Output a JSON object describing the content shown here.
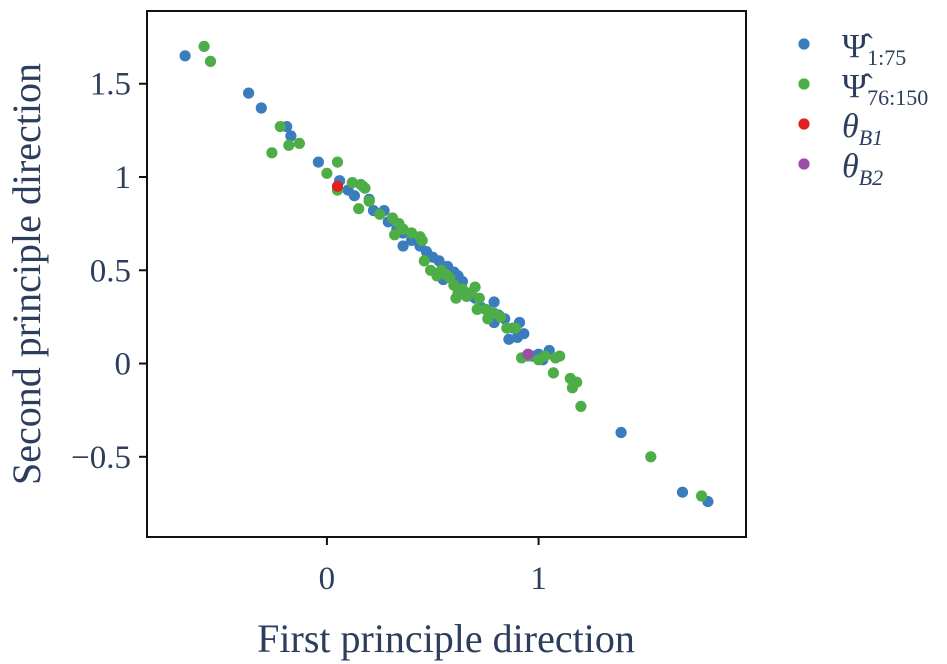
{
  "chart_data": {
    "type": "scatter",
    "xlabel": "First principle direction",
    "ylabel": "Second principle direction",
    "xlim": [
      -0.85,
      1.98
    ],
    "ylim": [
      -0.93,
      1.89
    ],
    "xticks": [
      {
        "value": 0,
        "label": "0"
      },
      {
        "value": 1,
        "label": "1"
      }
    ],
    "yticks": [
      {
        "value": 1.5,
        "label": "1.5"
      },
      {
        "value": 1,
        "label": "1"
      },
      {
        "value": 0.5,
        "label": "0.5"
      },
      {
        "value": 0,
        "label": "0"
      },
      {
        "value": -0.5,
        "label": "−0.5"
      }
    ],
    "grid": false,
    "legend_position": "outside-top-right",
    "series": [
      {
        "name": "Ψ̂ 1:75",
        "name_main": "Ψ̂",
        "name_sub": "1:75",
        "color": "#3a7cbd",
        "points": [
          [
            -0.67,
            1.65
          ],
          [
            -0.37,
            1.45
          ],
          [
            -0.31,
            1.37
          ],
          [
            -0.19,
            1.27
          ],
          [
            -0.17,
            1.22
          ],
          [
            -0.04,
            1.08
          ],
          [
            0.06,
            0.98
          ],
          [
            0.1,
            0.93
          ],
          [
            0.13,
            0.9
          ],
          [
            0.17,
            0.95
          ],
          [
            0.2,
            0.88
          ],
          [
            0.22,
            0.82
          ],
          [
            0.27,
            0.82
          ],
          [
            0.29,
            0.76
          ],
          [
            0.33,
            0.72
          ],
          [
            0.36,
            0.7
          ],
          [
            0.36,
            0.63
          ],
          [
            0.4,
            0.66
          ],
          [
            0.44,
            0.63
          ],
          [
            0.47,
            0.6
          ],
          [
            0.5,
            0.57
          ],
          [
            0.53,
            0.55
          ],
          [
            0.55,
            0.45
          ],
          [
            0.57,
            0.52
          ],
          [
            0.6,
            0.49
          ],
          [
            0.62,
            0.47
          ],
          [
            0.64,
            0.44
          ],
          [
            0.67,
            0.37
          ],
          [
            0.7,
            0.35
          ],
          [
            0.73,
            0.3
          ],
          [
            0.76,
            0.28
          ],
          [
            0.79,
            0.22
          ],
          [
            0.79,
            0.33
          ],
          [
            0.81,
            0.26
          ],
          [
            0.84,
            0.24
          ],
          [
            0.86,
            0.13
          ],
          [
            0.88,
            0.19
          ],
          [
            0.9,
            0.14
          ],
          [
            0.91,
            0.22
          ],
          [
            0.93,
            0.16
          ],
          [
            0.97,
            0.04
          ],
          [
            1.0,
            0.05
          ],
          [
            1.02,
            0.02
          ],
          [
            1.05,
            0.07
          ],
          [
            1.39,
            -0.37
          ],
          [
            1.68,
            -0.69
          ],
          [
            1.8,
            -0.74
          ]
        ]
      },
      {
        "name": "Ψ̂ 76:150",
        "name_main": "Ψ̂",
        "name_sub": "76:150",
        "color": "#4dae48",
        "points": [
          [
            -0.58,
            1.7
          ],
          [
            -0.55,
            1.62
          ],
          [
            -0.22,
            1.27
          ],
          [
            -0.26,
            1.13
          ],
          [
            -0.18,
            1.17
          ],
          [
            -0.13,
            1.18
          ],
          [
            0.05,
            1.08
          ],
          [
            0.0,
            1.02
          ],
          [
            0.05,
            0.93
          ],
          [
            0.12,
            0.97
          ],
          [
            0.16,
            0.96
          ],
          [
            0.18,
            0.94
          ],
          [
            0.15,
            0.83
          ],
          [
            0.2,
            0.87
          ],
          [
            0.25,
            0.8
          ],
          [
            0.31,
            0.78
          ],
          [
            0.32,
            0.69
          ],
          [
            0.34,
            0.75
          ],
          [
            0.36,
            0.72
          ],
          [
            0.4,
            0.7
          ],
          [
            0.44,
            0.68
          ],
          [
            0.45,
            0.66
          ],
          [
            0.46,
            0.55
          ],
          [
            0.49,
            0.5
          ],
          [
            0.52,
            0.47
          ],
          [
            0.54,
            0.5
          ],
          [
            0.56,
            0.48
          ],
          [
            0.58,
            0.46
          ],
          [
            0.6,
            0.42
          ],
          [
            0.61,
            0.35
          ],
          [
            0.62,
            0.38
          ],
          [
            0.64,
            0.4
          ],
          [
            0.66,
            0.36
          ],
          [
            0.68,
            0.38
          ],
          [
            0.7,
            0.41
          ],
          [
            0.71,
            0.29
          ],
          [
            0.72,
            0.35
          ],
          [
            0.75,
            0.29
          ],
          [
            0.76,
            0.24
          ],
          [
            0.79,
            0.27
          ],
          [
            0.82,
            0.25
          ],
          [
            0.85,
            0.19
          ],
          [
            0.89,
            0.19
          ],
          [
            0.92,
            0.03
          ],
          [
            0.95,
            0.04
          ],
          [
            1.0,
            0.02
          ],
          [
            1.03,
            0.04
          ],
          [
            1.07,
            -0.05
          ],
          [
            1.08,
            0.03
          ],
          [
            1.1,
            0.04
          ],
          [
            1.15,
            -0.08
          ],
          [
            1.16,
            -0.13
          ],
          [
            1.18,
            -0.1
          ],
          [
            1.2,
            -0.23
          ],
          [
            1.53,
            -0.5
          ],
          [
            1.77,
            -0.71
          ]
        ]
      },
      {
        "name": "θ B1",
        "name_main": "θ",
        "name_sub": "B1",
        "color": "#e02020",
        "points": [
          [
            0.05,
            0.95
          ]
        ]
      },
      {
        "name": "θ B2",
        "name_main": "θ",
        "name_sub": "B2",
        "color": "#9a4ea6",
        "points": [
          [
            0.95,
            0.05
          ]
        ]
      }
    ]
  }
}
